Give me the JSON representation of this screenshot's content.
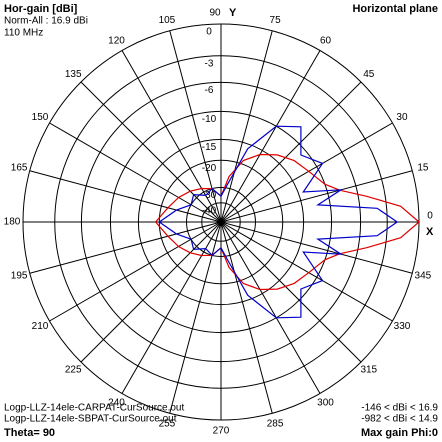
{
  "chart_data": {
    "type": "polar",
    "title": "Hor-gain [dBi]",
    "subtitle": "Norm-All : 16.9 dBi",
    "frequency": "110 MHz",
    "plane": "Horizontal plane",
    "x_axis_label": "X",
    "y_axis_label": "Y",
    "radial_scale": "arrl-log",
    "rticks": [
      0,
      -3,
      -6,
      -10,
      -15,
      -20,
      -30,
      -40
    ],
    "thetaticks": [
      0,
      15,
      30,
      45,
      60,
      75,
      90,
      105,
      120,
      135,
      150,
      165,
      180,
      195,
      210,
      225,
      240,
      255,
      270,
      285,
      300,
      315,
      330,
      345
    ],
    "theta": [
      0,
      5,
      10,
      15,
      20,
      30,
      40,
      50,
      60,
      70,
      80,
      90,
      105,
      120,
      135,
      150,
      165,
      180,
      195,
      210,
      225,
      240,
      255,
      270,
      280,
      290,
      300,
      310,
      320,
      330,
      340,
      345,
      350,
      355
    ],
    "series": [
      {
        "name": "Logp-LLZ-14ele-CARPAT-CurSource.out",
        "range": "-146 < dBi < 16.9",
        "color": "#e00000",
        "values": [
          0,
          -1.6,
          -5,
          -8.2,
          -10,
          -11.5,
          -12.5,
          -14,
          -16,
          -19,
          -25,
          -35,
          -30,
          -28,
          -26,
          -24,
          -22,
          -19,
          -22,
          -24,
          -26,
          -28,
          -30,
          -35,
          -25,
          -19,
          -16,
          -14,
          -12.5,
          -11.5,
          -10,
          -8.2,
          -5,
          -1.6
        ]
      },
      {
        "name": "Logp-LLZ-14ele-SBPAT-CurSource.out",
        "range": "-982 < dBi < 14.9",
        "color": "#0000cc",
        "values": [
          -2,
          -4,
          -12,
          -8,
          -14,
          -9,
          -11,
          -8,
          -10,
          -16,
          -28,
          -35,
          -30,
          -32,
          -28,
          -30,
          -25,
          -20,
          -25,
          -30,
          -28,
          -32,
          -30,
          -35,
          -28,
          -16,
          -10,
          -8,
          -11,
          -9,
          -14,
          -8,
          -12,
          -4
        ]
      }
    ],
    "footer_left": "Theta= 90",
    "footer_right": "Max gain Phi:0"
  }
}
